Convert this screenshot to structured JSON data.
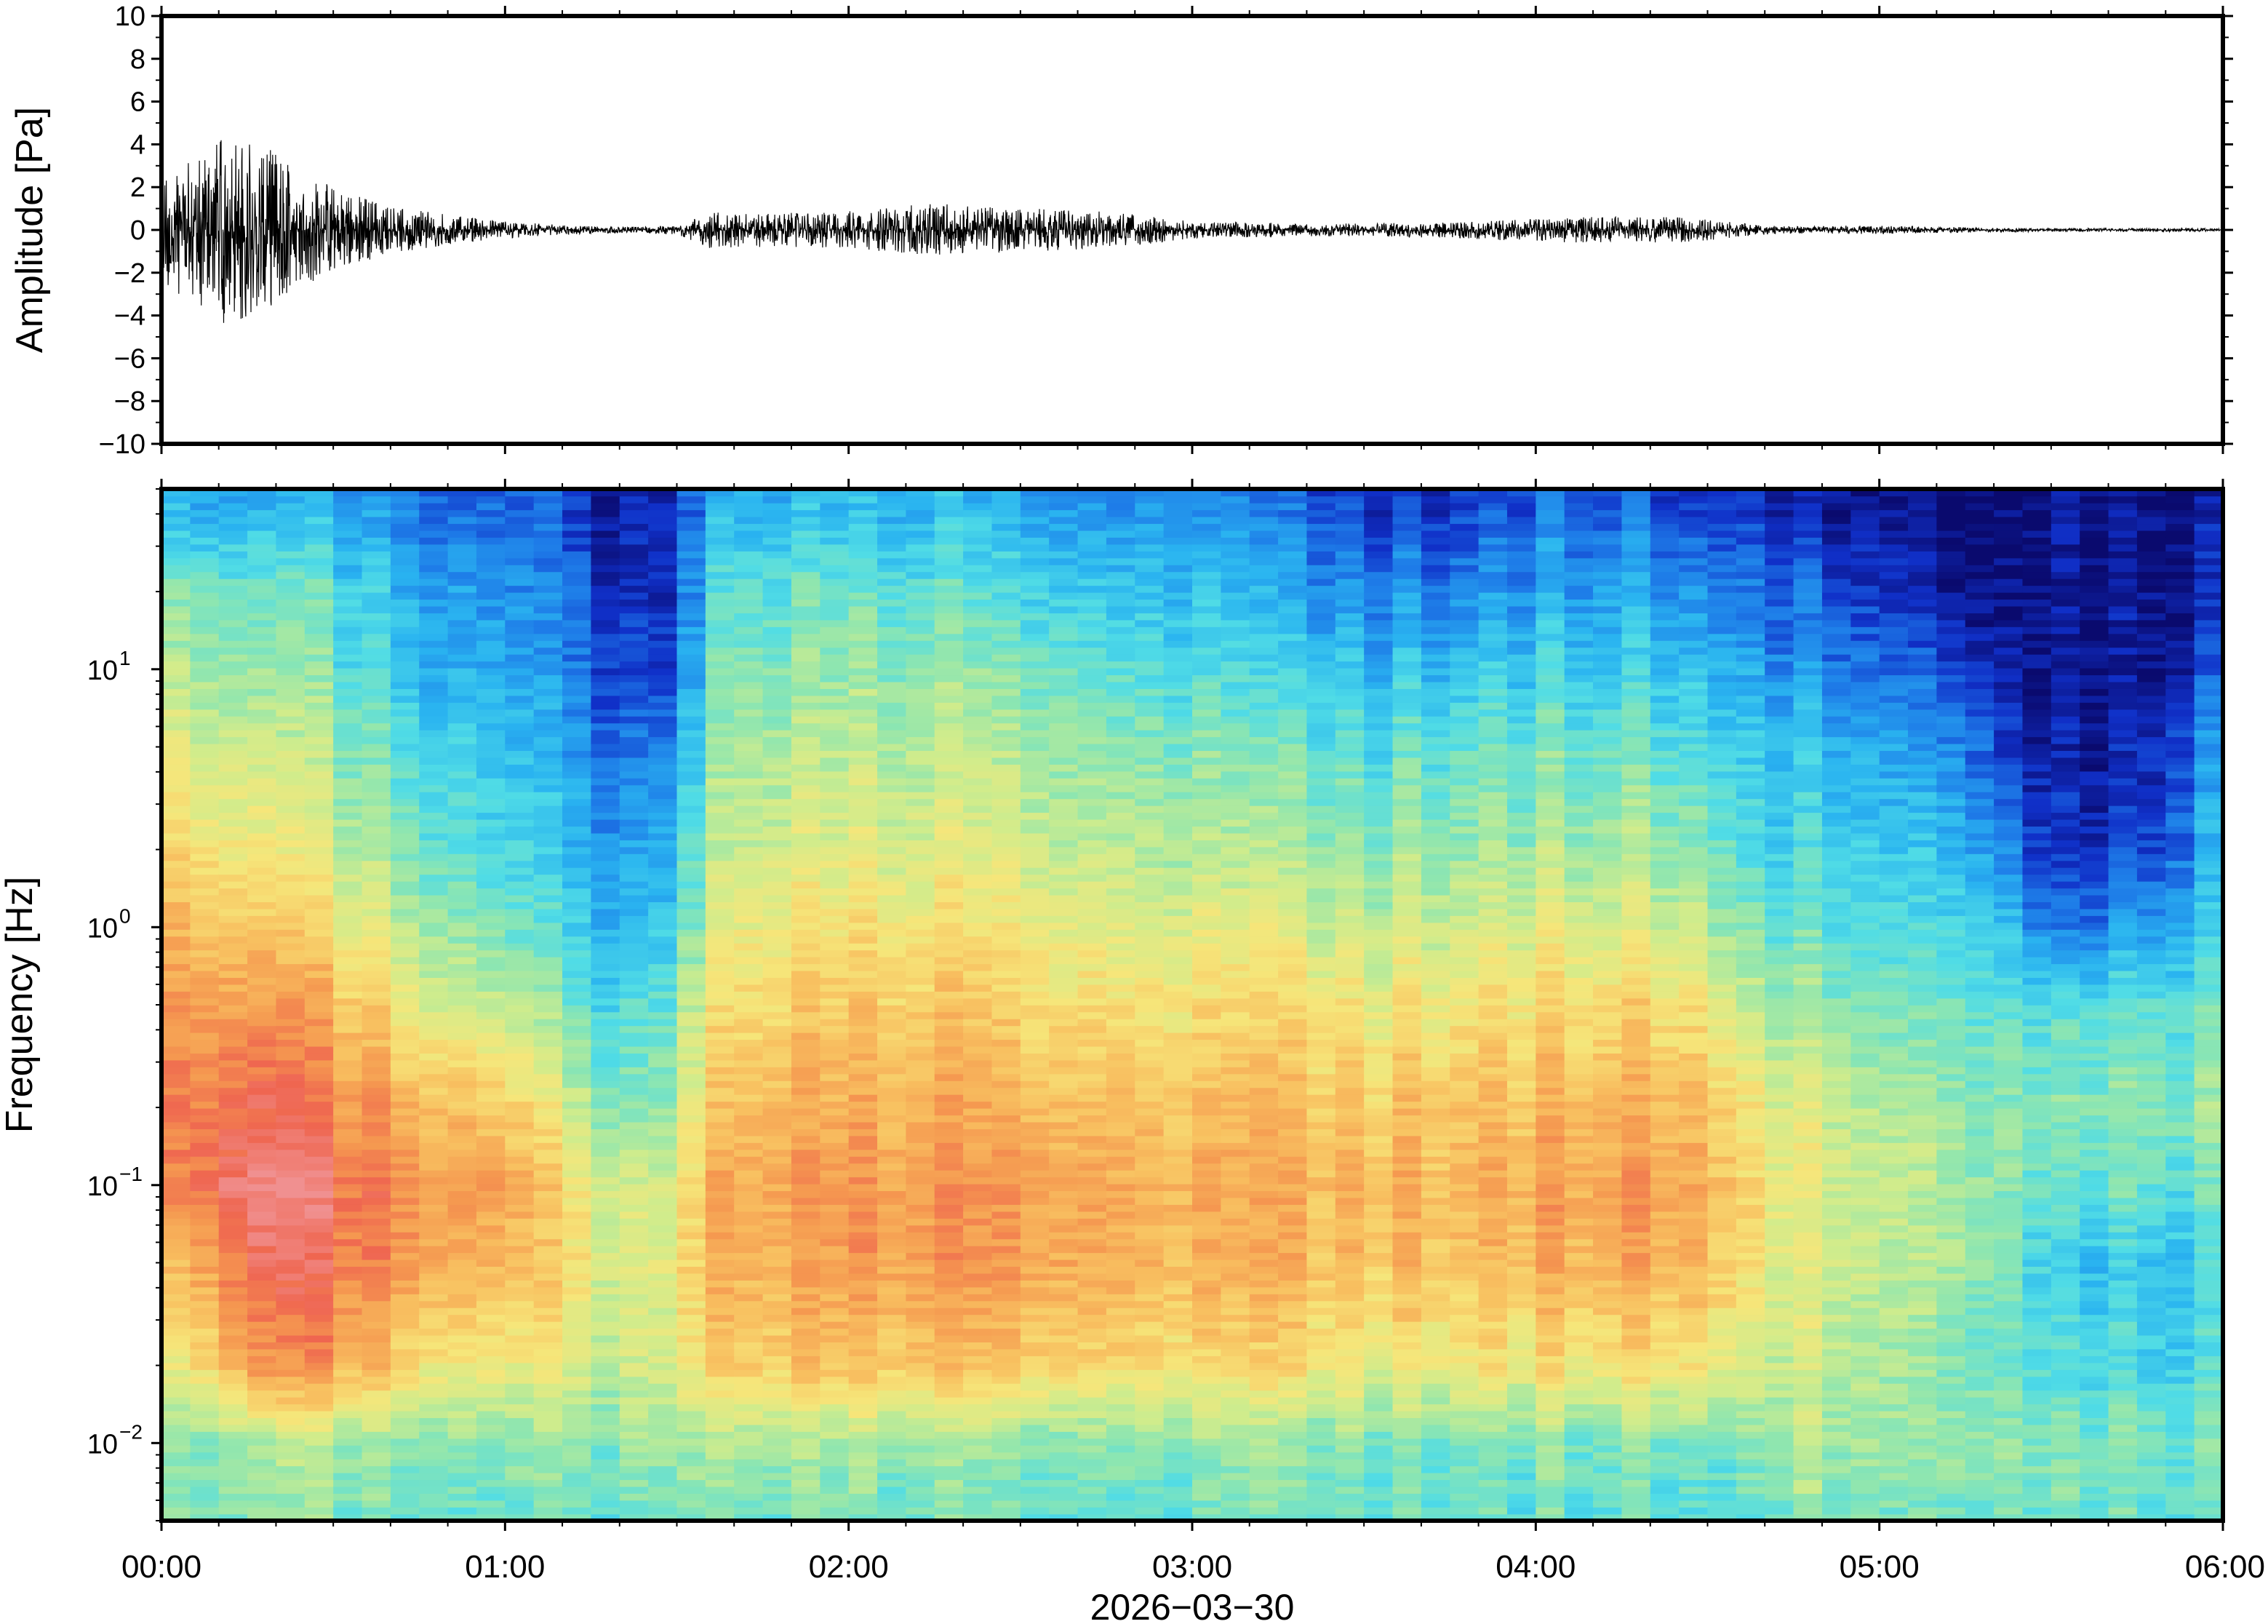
{
  "chart_data": [
    {
      "type": "line",
      "panel": "waveform",
      "ylabel": "Amplitude [Pa]",
      "ylim": [
        -10,
        10
      ],
      "yticks": [
        -10,
        -8,
        -6,
        -4,
        -2,
        0,
        2,
        4,
        6,
        8,
        10
      ],
      "ytick_labels": [
        "−10",
        "−8",
        "−6",
        "−4",
        "−2",
        "0",
        "2",
        "4",
        "6",
        "8",
        "10"
      ],
      "xlim_hours": [
        0,
        6
      ],
      "line_color": "#000000",
      "envelope": {
        "t_hours": [
          0,
          0.1,
          0.2,
          0.3,
          0.4,
          0.5,
          0.6,
          0.7,
          0.8,
          0.9,
          1.0,
          1.1,
          1.2,
          1.3,
          1.4,
          1.5,
          1.6,
          1.7,
          1.8,
          1.9,
          2.0,
          2.1,
          2.2,
          2.3,
          2.4,
          2.5,
          2.6,
          2.7,
          2.8,
          2.9,
          3.0,
          3.1,
          3.2,
          3.3,
          3.4,
          3.5,
          3.6,
          3.7,
          3.8,
          3.9,
          4.0,
          4.1,
          4.2,
          4.3,
          4.4,
          4.5,
          4.6,
          4.7,
          4.8,
          4.9,
          5.0,
          5.1,
          5.2,
          5.3,
          5.4,
          5.5,
          5.6,
          5.7,
          5.8,
          5.9,
          6.0
        ],
        "amplitude_pa": [
          2.5,
          3.5,
          4.6,
          4.0,
          2.8,
          2.0,
          1.5,
          1.0,
          0.8,
          0.6,
          0.4,
          0.3,
          0.2,
          0.15,
          0.15,
          0.2,
          0.9,
          0.8,
          0.8,
          0.8,
          0.9,
          1.0,
          1.2,
          1.2,
          1.1,
          1.0,
          1.0,
          0.9,
          0.8,
          0.6,
          0.4,
          0.35,
          0.35,
          0.3,
          0.3,
          0.3,
          0.35,
          0.35,
          0.4,
          0.5,
          0.5,
          0.6,
          0.6,
          0.6,
          0.6,
          0.5,
          0.3,
          0.2,
          0.15,
          0.2,
          0.2,
          0.15,
          0.15,
          0.1,
          0.1,
          0.08,
          0.08,
          0.08,
          0.08,
          0.08,
          0.08
        ]
      }
    },
    {
      "type": "heatmap",
      "panel": "spectrogram",
      "ylabel": "Frequency [Hz]",
      "yscale": "log",
      "ylim": [
        0.005,
        50
      ],
      "yticks": [
        0.01,
        0.1,
        1,
        10
      ],
      "ytick_labels": [
        {
          "base": "10",
          "exp": "−2"
        },
        {
          "base": "10",
          "exp": "−1"
        },
        {
          "base": "10",
          "exp": "0"
        },
        {
          "base": "10",
          "exp": "1"
        }
      ],
      "xlabel": "2026−03−30",
      "xticks": [
        "00:00",
        "01:00",
        "02:00",
        "03:00",
        "04:00",
        "05:00",
        "06:00"
      ],
      "xlim_hours": [
        0,
        6
      ],
      "colormap": [
        "#0a0a6e",
        "#1030c8",
        "#1e7ce8",
        "#2ab4f0",
        "#50dce6",
        "#8ee6b0",
        "#d0ec8c",
        "#f6e67a",
        "#f8c060",
        "#f59850",
        "#ef6650",
        "#f09090"
      ],
      "level_scale": "relative power 0 (dark blue) to 1 (light red)",
      "column_hours": [
        0,
        0.25,
        0.5,
        0.75,
        1.0,
        1.25,
        1.4,
        1.5,
        1.6,
        1.75,
        2.0,
        2.5,
        3.0,
        3.25,
        3.5,
        3.75,
        4.0,
        4.25,
        4.5,
        4.6,
        4.75,
        5.0,
        5.25,
        5.4,
        5.5,
        5.75,
        6.0
      ],
      "band_freqs_hz": [
        0.005,
        0.01,
        0.02,
        0.05,
        0.1,
        0.2,
        0.5,
        1,
        2,
        5,
        10,
        20,
        45
      ],
      "levels": [
        [
          0.45,
          0.45,
          0.55,
          0.7,
          0.82,
          0.85,
          0.82,
          0.75,
          0.68,
          0.6,
          0.52,
          0.45,
          0.28
        ],
        [
          0.45,
          0.5,
          0.82,
          0.92,
          1.0,
          0.92,
          0.82,
          0.72,
          0.64,
          0.55,
          0.48,
          0.42,
          0.28
        ],
        [
          0.45,
          0.5,
          0.8,
          0.9,
          0.92,
          0.85,
          0.76,
          0.64,
          0.55,
          0.48,
          0.42,
          0.38,
          0.25
        ],
        [
          0.42,
          0.48,
          0.68,
          0.82,
          0.85,
          0.78,
          0.62,
          0.52,
          0.45,
          0.38,
          0.32,
          0.28,
          0.2
        ],
        [
          0.4,
          0.45,
          0.6,
          0.75,
          0.78,
          0.7,
          0.52,
          0.42,
          0.35,
          0.3,
          0.25,
          0.22,
          0.15
        ],
        [
          0.4,
          0.45,
          0.55,
          0.6,
          0.58,
          0.48,
          0.38,
          0.3,
          0.25,
          0.2,
          0.15,
          0.12,
          0.06
        ],
        [
          0.4,
          0.45,
          0.52,
          0.55,
          0.52,
          0.42,
          0.35,
          0.28,
          0.22,
          0.15,
          0.08,
          0.05,
          0.03
        ],
        [
          0.4,
          0.45,
          0.55,
          0.58,
          0.55,
          0.48,
          0.4,
          0.32,
          0.26,
          0.18,
          0.1,
          0.06,
          0.04
        ],
        [
          0.42,
          0.48,
          0.68,
          0.74,
          0.75,
          0.7,
          0.62,
          0.55,
          0.5,
          0.45,
          0.4,
          0.35,
          0.25
        ],
        [
          0.42,
          0.48,
          0.7,
          0.76,
          0.78,
          0.74,
          0.68,
          0.62,
          0.56,
          0.5,
          0.45,
          0.4,
          0.28
        ],
        [
          0.42,
          0.48,
          0.72,
          0.8,
          0.8,
          0.76,
          0.7,
          0.64,
          0.58,
          0.52,
          0.46,
          0.4,
          0.28
        ],
        [
          0.42,
          0.48,
          0.72,
          0.82,
          0.82,
          0.78,
          0.7,
          0.64,
          0.58,
          0.52,
          0.46,
          0.38,
          0.28
        ],
        [
          0.4,
          0.45,
          0.65,
          0.75,
          0.76,
          0.72,
          0.64,
          0.58,
          0.5,
          0.44,
          0.36,
          0.3,
          0.2
        ],
        [
          0.4,
          0.45,
          0.64,
          0.74,
          0.75,
          0.72,
          0.64,
          0.56,
          0.48,
          0.4,
          0.32,
          0.24,
          0.15
        ],
        [
          0.4,
          0.44,
          0.62,
          0.72,
          0.74,
          0.7,
          0.62,
          0.54,
          0.46,
          0.38,
          0.3,
          0.2,
          0.1
        ],
        [
          0.4,
          0.44,
          0.62,
          0.72,
          0.75,
          0.72,
          0.64,
          0.56,
          0.48,
          0.4,
          0.3,
          0.2,
          0.1
        ],
        [
          0.4,
          0.44,
          0.64,
          0.75,
          0.78,
          0.74,
          0.66,
          0.58,
          0.5,
          0.42,
          0.34,
          0.25,
          0.15
        ],
        [
          0.4,
          0.44,
          0.65,
          0.78,
          0.8,
          0.76,
          0.68,
          0.58,
          0.5,
          0.42,
          0.34,
          0.26,
          0.15
        ],
        [
          0.4,
          0.45,
          0.66,
          0.78,
          0.8,
          0.76,
          0.66,
          0.56,
          0.48,
          0.4,
          0.32,
          0.24,
          0.12
        ],
        [
          0.4,
          0.45,
          0.58,
          0.68,
          0.7,
          0.66,
          0.56,
          0.46,
          0.4,
          0.34,
          0.28,
          0.2,
          0.1
        ],
        [
          0.45,
          0.5,
          0.55,
          0.58,
          0.6,
          0.58,
          0.48,
          0.4,
          0.35,
          0.3,
          0.22,
          0.15,
          0.06
        ],
        [
          0.45,
          0.5,
          0.52,
          0.55,
          0.56,
          0.54,
          0.46,
          0.4,
          0.35,
          0.28,
          0.2,
          0.12,
          0.05
        ],
        [
          0.45,
          0.5,
          0.48,
          0.52,
          0.52,
          0.5,
          0.44,
          0.38,
          0.32,
          0.24,
          0.15,
          0.06,
          0.03
        ],
        [
          0.42,
          0.48,
          0.4,
          0.4,
          0.45,
          0.45,
          0.4,
          0.28,
          0.18,
          0.08,
          0.03,
          0.02,
          0.01
        ],
        [
          0.4,
          0.42,
          0.35,
          0.3,
          0.38,
          0.42,
          0.35,
          0.15,
          0.06,
          0.03,
          0.02,
          0.01,
          0.01
        ],
        [
          0.4,
          0.42,
          0.35,
          0.3,
          0.4,
          0.45,
          0.38,
          0.22,
          0.1,
          0.04,
          0.02,
          0.02,
          0.02
        ],
        [
          0.4,
          0.45,
          0.38,
          0.35,
          0.42,
          0.48,
          0.42,
          0.35,
          0.3,
          0.25,
          0.15,
          0.08,
          0.05
        ]
      ]
    }
  ]
}
